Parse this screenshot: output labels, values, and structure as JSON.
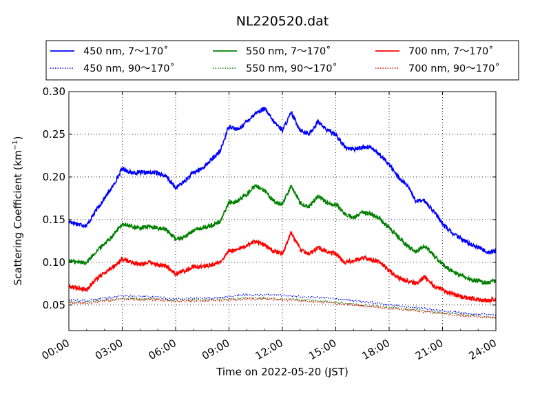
{
  "chart_data": {
    "type": "line",
    "title": "NL220520.dat",
    "xlabel": "Time on 2022-05-20 (JST)",
    "ylabel": "Scattering Coefficient (km",
    "ylabel_exponent": "−1",
    "ylabel_close": ")",
    "xlim": [
      0,
      24
    ],
    "ylim": [
      0.02,
      0.3
    ],
    "x_ticks": [
      0,
      3,
      6,
      9,
      12,
      15,
      18,
      21,
      24
    ],
    "x_tick_labels": [
      "00:00",
      "03:00",
      "06:00",
      "09:00",
      "12:00",
      "15:00",
      "18:00",
      "21:00",
      "24:00"
    ],
    "y_ticks": [
      0.05,
      0.1,
      0.15,
      0.2,
      0.25,
      0.3
    ],
    "y_tick_labels": [
      "0.05",
      "0.10",
      "0.15",
      "0.20",
      "0.25",
      "0.30"
    ],
    "grid": true,
    "grid_style": "dotted",
    "legend_position": "top",
    "legend_columns": 3,
    "series": [
      {
        "name": "450 nm, 7～170˚",
        "color": "#0000ff",
        "style": "solid",
        "x": [
          0,
          0.5,
          1,
          1.5,
          2,
          2.5,
          3,
          3.5,
          4,
          4.5,
          5,
          5.5,
          6,
          6.5,
          7,
          7.5,
          8,
          8.5,
          9,
          9.5,
          10,
          10.5,
          11,
          11.5,
          12,
          12.5,
          13,
          13.5,
          14,
          14.5,
          15,
          15.5,
          16,
          16.5,
          17,
          17.5,
          18,
          18.5,
          19,
          19.5,
          20,
          20.5,
          21,
          21.5,
          22,
          22.5,
          23,
          23.5,
          24
        ],
        "y": [
          0.148,
          0.145,
          0.143,
          0.16,
          0.175,
          0.19,
          0.21,
          0.205,
          0.205,
          0.205,
          0.205,
          0.2,
          0.187,
          0.195,
          0.205,
          0.21,
          0.22,
          0.23,
          0.26,
          0.255,
          0.265,
          0.275,
          0.28,
          0.265,
          0.255,
          0.275,
          0.255,
          0.25,
          0.265,
          0.255,
          0.25,
          0.235,
          0.232,
          0.235,
          0.235,
          0.225,
          0.215,
          0.2,
          0.19,
          0.172,
          0.172,
          0.16,
          0.145,
          0.135,
          0.128,
          0.122,
          0.118,
          0.112,
          0.113
        ]
      },
      {
        "name": "550 nm, 7～170˚",
        "color": "#008000",
        "style": "solid",
        "x": [
          0,
          0.5,
          1,
          1.5,
          2,
          2.5,
          3,
          3.5,
          4,
          4.5,
          5,
          5.5,
          6,
          6.5,
          7,
          7.5,
          8,
          8.5,
          9,
          9.5,
          10,
          10.5,
          11,
          11.5,
          12,
          12.5,
          13,
          13.5,
          14,
          14.5,
          15,
          15.5,
          16,
          16.5,
          17,
          17.5,
          18,
          18.5,
          19,
          19.5,
          20,
          20.5,
          21,
          21.5,
          22,
          22.5,
          23,
          23.5,
          24
        ],
        "y": [
          0.102,
          0.1,
          0.1,
          0.112,
          0.122,
          0.132,
          0.145,
          0.142,
          0.14,
          0.142,
          0.14,
          0.138,
          0.127,
          0.13,
          0.137,
          0.14,
          0.143,
          0.148,
          0.17,
          0.172,
          0.18,
          0.19,
          0.183,
          0.172,
          0.168,
          0.19,
          0.17,
          0.165,
          0.178,
          0.17,
          0.168,
          0.157,
          0.152,
          0.158,
          0.157,
          0.15,
          0.14,
          0.13,
          0.12,
          0.112,
          0.12,
          0.108,
          0.098,
          0.09,
          0.085,
          0.08,
          0.078,
          0.076,
          0.078
        ]
      },
      {
        "name": "700 nm, 7～170˚",
        "color": "#ff0000",
        "style": "solid",
        "x": [
          0,
          0.5,
          1,
          1.5,
          2,
          2.5,
          3,
          3.5,
          4,
          4.5,
          5,
          5.5,
          6,
          6.5,
          7,
          7.5,
          8,
          8.5,
          9,
          9.5,
          10,
          10.5,
          11,
          11.5,
          12,
          12.5,
          13,
          13.5,
          14,
          14.5,
          15,
          15.5,
          16,
          16.5,
          17,
          17.5,
          18,
          18.5,
          19,
          19.5,
          20,
          20.5,
          21,
          21.5,
          22,
          22.5,
          23,
          23.5,
          24
        ],
        "y": [
          0.072,
          0.07,
          0.068,
          0.08,
          0.088,
          0.095,
          0.104,
          0.1,
          0.098,
          0.1,
          0.097,
          0.095,
          0.087,
          0.09,
          0.095,
          0.095,
          0.097,
          0.1,
          0.113,
          0.115,
          0.12,
          0.125,
          0.12,
          0.113,
          0.11,
          0.135,
          0.115,
          0.11,
          0.117,
          0.112,
          0.11,
          0.1,
          0.102,
          0.105,
          0.103,
          0.1,
          0.09,
          0.082,
          0.078,
          0.075,
          0.083,
          0.072,
          0.068,
          0.063,
          0.06,
          0.058,
          0.056,
          0.055,
          0.057
        ]
      },
      {
        "name": "450 nm, 90～170˚",
        "color": "#0000ff",
        "style": "dotted",
        "x": [
          0,
          1,
          2,
          3,
          4,
          5,
          6,
          7,
          8,
          9,
          10,
          11,
          12,
          13,
          14,
          15,
          16,
          17,
          18,
          19,
          20,
          21,
          22,
          23,
          24
        ],
        "y": [
          0.056,
          0.055,
          0.058,
          0.061,
          0.06,
          0.059,
          0.057,
          0.058,
          0.058,
          0.06,
          0.062,
          0.062,
          0.061,
          0.06,
          0.059,
          0.057,
          0.055,
          0.053,
          0.05,
          0.048,
          0.046,
          0.043,
          0.041,
          0.039,
          0.038
        ]
      },
      {
        "name": "550 nm, 90～170˚",
        "color": "#008000",
        "style": "dotted",
        "x": [
          0,
          1,
          2,
          3,
          4,
          5,
          6,
          7,
          8,
          9,
          10,
          11,
          12,
          13,
          14,
          15,
          16,
          17,
          18,
          19,
          20,
          21,
          22,
          23,
          24
        ],
        "y": [
          0.054,
          0.053,
          0.056,
          0.058,
          0.057,
          0.057,
          0.055,
          0.056,
          0.056,
          0.057,
          0.058,
          0.058,
          0.057,
          0.056,
          0.055,
          0.053,
          0.051,
          0.049,
          0.047,
          0.045,
          0.043,
          0.041,
          0.039,
          0.037,
          0.035
        ]
      },
      {
        "name": "700 nm, 90～170˚",
        "color": "#ff0000",
        "style": "dotted",
        "x": [
          0,
          1,
          2,
          3,
          4,
          5,
          6,
          7,
          8,
          9,
          10,
          11,
          12,
          13,
          14,
          15,
          16,
          17,
          18,
          19,
          20,
          21,
          22,
          23,
          24
        ],
        "y": [
          0.053,
          0.052,
          0.055,
          0.057,
          0.056,
          0.056,
          0.054,
          0.055,
          0.055,
          0.056,
          0.057,
          0.057,
          0.056,
          0.055,
          0.054,
          0.052,
          0.05,
          0.048,
          0.046,
          0.044,
          0.042,
          0.04,
          0.038,
          0.036,
          0.035
        ]
      }
    ]
  }
}
